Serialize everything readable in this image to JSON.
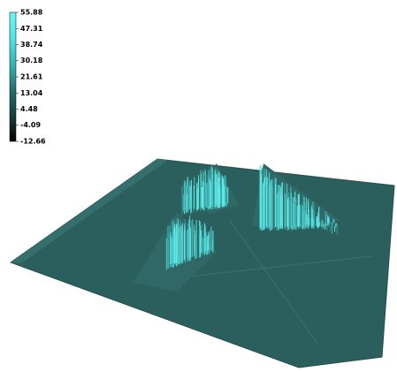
{
  "chart_data": {
    "type": "surface",
    "colorbar": {
      "clim": [
        -12.66,
        55.88
      ],
      "ticks": [
        55.88,
        47.31,
        38.74,
        30.18,
        21.61,
        13.04,
        4.48,
        -4.09,
        -12.66
      ],
      "colors": [
        "#000000",
        "#173f3f",
        "#237070",
        "#35b4b4",
        "#4ee6e6",
        "#6cf6f6"
      ]
    }
  }
}
